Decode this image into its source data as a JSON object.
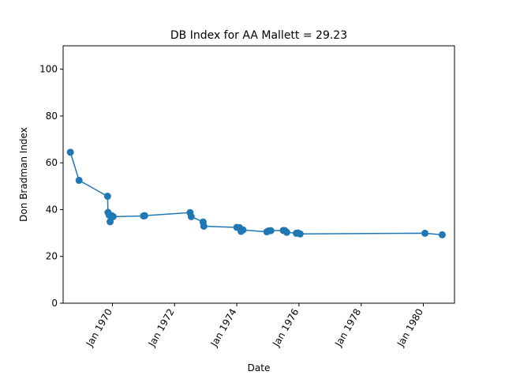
{
  "chart_data": {
    "type": "line",
    "title": "DB Index for AA Mallett = 29.23",
    "xlabel": "Date",
    "ylabel": "Don Bradman Index",
    "ylim": [
      0,
      110
    ],
    "xlim": [
      "1968-06-01",
      "1981-01-01"
    ],
    "grid": false,
    "color": "#1f77b4",
    "y_ticks": [
      0,
      20,
      40,
      60,
      80,
      100
    ],
    "x_ticks": [
      {
        "date": "1970-01-01",
        "label": "Jan 1970"
      },
      {
        "date": "1972-01-01",
        "label": "Jan 1972"
      },
      {
        "date": "1974-01-01",
        "label": "Jan 1974"
      },
      {
        "date": "1976-01-01",
        "label": "Jan 1976"
      },
      {
        "date": "1978-01-01",
        "label": "Jan 1978"
      },
      {
        "date": "1980-01-01",
        "label": "Jan 1980"
      }
    ],
    "series": [
      {
        "points": [
          {
            "x": "1968-08-25",
            "y": 64.5
          },
          {
            "x": "1968-12-05",
            "y": 52.5
          },
          {
            "x": "1969-11-05",
            "y": 45.7
          },
          {
            "x": "1969-11-10",
            "y": 38.8
          },
          {
            "x": "1969-11-25",
            "y": 37.6
          },
          {
            "x": "1969-12-05",
            "y": 34.8
          },
          {
            "x": "1969-12-20",
            "y": 37.5
          },
          {
            "x": "1970-01-10",
            "y": 37.0
          },
          {
            "x": "1971-01-01",
            "y": 37.3
          },
          {
            "x": "1971-01-15",
            "y": 37.4
          },
          {
            "x": "1972-07-01",
            "y": 38.7
          },
          {
            "x": "1972-07-15",
            "y": 37.0
          },
          {
            "x": "1972-12-01",
            "y": 34.7
          },
          {
            "x": "1972-12-10",
            "y": 32.9
          },
          {
            "x": "1974-01-01",
            "y": 32.4
          },
          {
            "x": "1974-02-01",
            "y": 32.3
          },
          {
            "x": "1974-02-20",
            "y": 30.7
          },
          {
            "x": "1974-03-15",
            "y": 31.3
          },
          {
            "x": "1974-12-20",
            "y": 30.5
          },
          {
            "x": "1975-01-10",
            "y": 30.9
          },
          {
            "x": "1975-02-05",
            "y": 31.0
          },
          {
            "x": "1975-07-01",
            "y": 31.1
          },
          {
            "x": "1975-07-20",
            "y": 31.0
          },
          {
            "x": "1975-08-10",
            "y": 30.3
          },
          {
            "x": "1975-12-01",
            "y": 29.9
          },
          {
            "x": "1975-12-20",
            "y": 30.0
          },
          {
            "x": "1976-01-15",
            "y": 29.6
          },
          {
            "x": "1980-01-20",
            "y": 29.9
          },
          {
            "x": "1980-08-10",
            "y": 29.23
          }
        ]
      }
    ]
  }
}
